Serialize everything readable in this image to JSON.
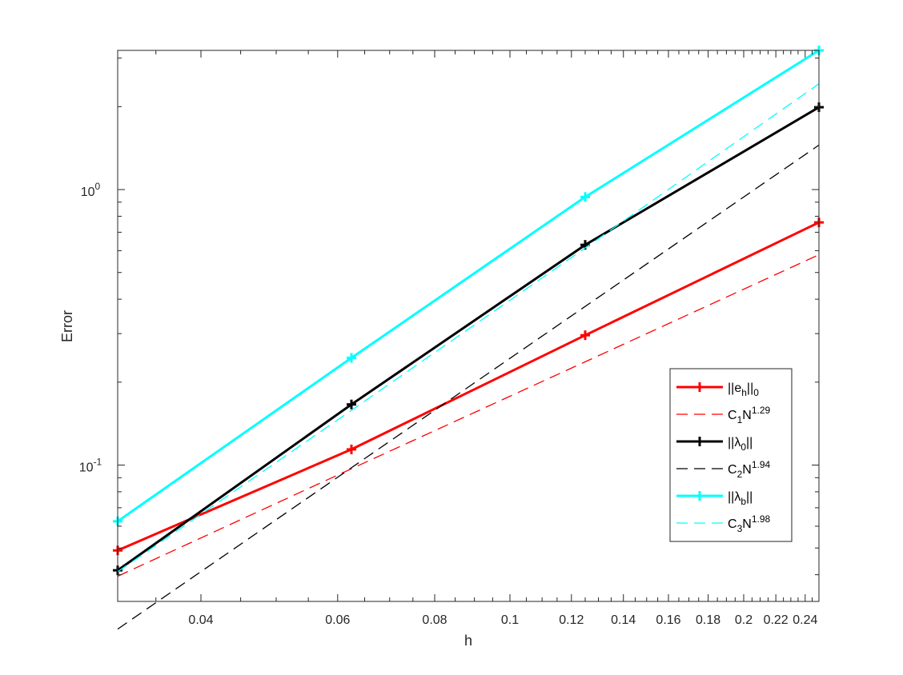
{
  "chart_data": {
    "type": "line",
    "xlabel": "h",
    "ylabel": "Error",
    "xscale": "log",
    "yscale": "log",
    "xlim": [
      0.03125,
      0.25
    ],
    "ylim": [
      0.032,
      3.2
    ],
    "grid": false,
    "legend_position": "lower-right",
    "x_ticks": [
      0.04,
      0.06,
      0.08,
      0.1,
      0.12,
      0.14,
      0.16,
      0.18,
      0.2,
      0.22,
      0.24
    ],
    "x_tick_labels": [
      "0.04",
      "0.06",
      "0.08",
      "0.1",
      "0.12",
      "0.14",
      "0.16",
      "0.18",
      "0.2",
      "0.22",
      "0.24"
    ],
    "y_ticks": [
      0.1,
      1
    ],
    "y_tick_labels": [
      {
        "base": "10",
        "exp": "-1"
      },
      {
        "base": "10",
        "exp": "0"
      }
    ],
    "series": [
      {
        "legend": {
          "pre": "||e",
          "sub": "h",
          "post": "||",
          "sub2": "0"
        },
        "style": "solid",
        "marker": "+",
        "width": 3,
        "color": "#ff0000",
        "x": [
          0.03125,
          0.0625,
          0.125,
          0.25
        ],
        "y": [
          0.049,
          0.114,
          0.296,
          0.76
        ]
      },
      {
        "legend": {
          "pre": "C",
          "sub": "1",
          "post": "N",
          "sup": "1.29"
        },
        "style": "dashed",
        "marker": "none",
        "width": 1.3,
        "color": "#ff0000",
        "x": [
          0.03125,
          0.0625,
          0.125,
          0.25
        ],
        "y": [
          0.0395,
          0.097,
          0.237,
          0.58
        ]
      },
      {
        "legend": {
          "pre": "||λ",
          "sub": "0",
          "post": "||"
        },
        "style": "solid",
        "marker": "+",
        "width": 3,
        "color": "#000000",
        "x": [
          0.03125,
          0.0625,
          0.125,
          0.25
        ],
        "y": [
          0.0415,
          0.166,
          0.63,
          1.99
        ]
      },
      {
        "legend": {
          "pre": "C",
          "sub": "2",
          "post": "N",
          "sup": "1.94"
        },
        "style": "dashed",
        "marker": "none",
        "width": 1.3,
        "color": "#000000",
        "x": [
          0.03125,
          0.25
        ],
        "y": [
          0.0254,
          1.45
        ]
      },
      {
        "legend": {
          "pre": "||λ",
          "sub": "b",
          "post": "||"
        },
        "style": "solid",
        "marker": "+",
        "width": 3,
        "color": "#00ffff",
        "x": [
          0.03125,
          0.0625,
          0.125,
          0.25
        ],
        "y": [
          0.0625,
          0.245,
          0.94,
          3.2
        ]
      },
      {
        "legend": {
          "pre": "C",
          "sub": "3",
          "post": "N",
          "sup": "1.98"
        },
        "style": "dashed",
        "marker": "none",
        "width": 1.3,
        "color": "#00ffff",
        "x": [
          0.03125,
          0.0625,
          0.125,
          0.25
        ],
        "y": [
          0.041,
          0.158,
          0.614,
          2.42
        ]
      }
    ]
  }
}
